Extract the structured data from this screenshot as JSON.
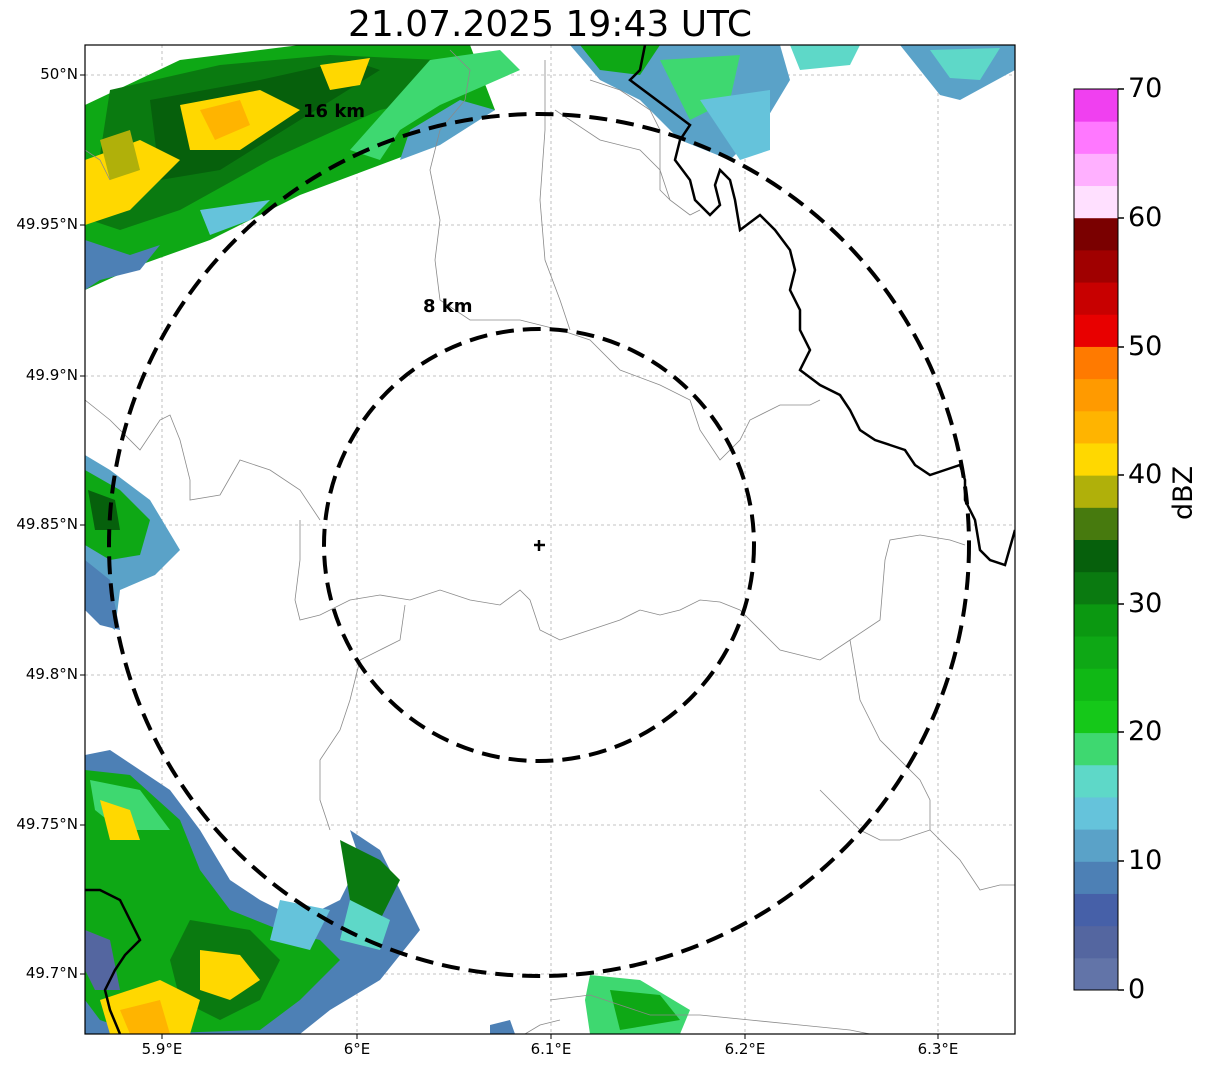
{
  "title": "21.07.2025 19:43 UTC",
  "map": {
    "lon_range": [
      5.86,
      6.34
    ],
    "lat_range": [
      49.68,
      50.01
    ],
    "center": {
      "lon": 6.095,
      "lat": 49.843
    },
    "lat_ticks": [
      "50°N",
      "49.95°N",
      "49.9°N",
      "49.85°N",
      "49.8°N",
      "49.75°N",
      "49.7°N"
    ],
    "lon_ticks": [
      "5.9°E",
      "6°E",
      "6.1°E",
      "6.2°E",
      "6.3°E"
    ],
    "range_rings": [
      {
        "label": "8 km",
        "radius_km": 8
      },
      {
        "label": "16 km",
        "radius_km": 16
      }
    ],
    "grid": true
  },
  "colorbar": {
    "label": "dBZ",
    "ticks": [
      "0",
      "10",
      "20",
      "30",
      "40",
      "50",
      "60",
      "70"
    ],
    "range": [
      0,
      70
    ],
    "colors": [
      "#6274a8",
      "#5466a0",
      "#4660a8",
      "#4d80b5",
      "#5aa2c8",
      "#65c3db",
      "#5ed8c8",
      "#3ed870",
      "#15c819",
      "#10b815",
      "#0ea815",
      "#0b9811",
      "#0a7a10",
      "#06600c",
      "#477a0e",
      "#b0b00a",
      "#ffd800",
      "#ffb400",
      "#ff9a00",
      "#ff7a00",
      "#e80000",
      "#c80000",
      "#a00000",
      "#7a0000",
      "#ffe0ff",
      "#ffb0ff",
      "#ff78ff",
      "#f040f0"
    ]
  }
}
